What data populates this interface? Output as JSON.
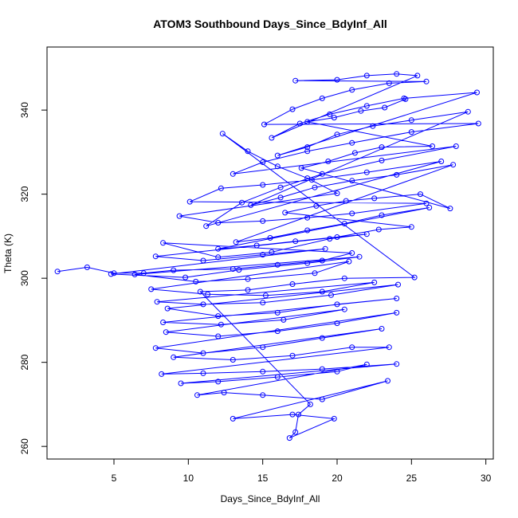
{
  "chart_data": {
    "type": "line",
    "title": "ATOM3 Southbound Days_Since_BdyInf_All",
    "xlabel": "Days_Since_BdyInf_All",
    "ylabel": "Theta (K)",
    "xlim": [
      0.5,
      30.5
    ],
    "ylim": [
      257,
      355
    ],
    "xticks": [
      5,
      10,
      15,
      20,
      25,
      30
    ],
    "yticks": [
      260,
      280,
      300,
      320,
      340
    ],
    "grid": false,
    "legend": "none",
    "colors": {
      "series": "#0000ff",
      "axis": "#000000"
    },
    "markers": "open-circle",
    "series": [
      {
        "values_note": "",
        "points": [
          [
            1.2,
            301.6
          ],
          [
            3.2,
            302.6
          ],
          [
            5.0,
            301.2
          ],
          [
            7.0,
            301.2
          ],
          [
            9.0,
            301.9
          ],
          [
            13.0,
            302.2
          ],
          [
            16.0,
            303.2
          ],
          [
            19.0,
            304.2
          ],
          [
            21.0,
            306.0
          ],
          [
            8.3,
            308.4
          ],
          [
            12.0,
            305.0
          ],
          [
            15.6,
            306.2
          ],
          [
            19.5,
            309.4
          ],
          [
            22.0,
            310.5
          ],
          [
            7.8,
            305.2
          ],
          [
            11.0,
            304.2
          ],
          [
            15.0,
            305.6
          ],
          [
            19.2,
            307.0
          ],
          [
            4.8,
            301.0
          ],
          [
            9.8,
            300.2
          ],
          [
            13.4,
            302.0
          ],
          [
            18.0,
            303.6
          ],
          [
            21.5,
            305.1
          ],
          [
            6.4,
            300.9
          ],
          [
            10.5,
            299.2
          ],
          [
            14.0,
            299.8
          ],
          [
            18.5,
            301.2
          ],
          [
            20.8,
            304.0
          ],
          [
            7.5,
            297.4
          ],
          [
            11.3,
            296.2
          ],
          [
            15.2,
            295.9
          ],
          [
            19.0,
            296.8
          ],
          [
            22.5,
            299.0
          ],
          [
            7.9,
            294.4
          ],
          [
            11.0,
            293.8
          ],
          [
            15.0,
            294.2
          ],
          [
            19.6,
            296.0
          ],
          [
            24.1,
            298.5
          ],
          [
            8.6,
            292.8
          ],
          [
            12.0,
            291.0
          ],
          [
            16.0,
            291.8
          ],
          [
            20.0,
            293.8
          ],
          [
            24.0,
            295.2
          ],
          [
            8.3,
            289.5
          ],
          [
            12.2,
            289.0
          ],
          [
            16.4,
            290.1
          ],
          [
            20.5,
            292.6
          ],
          [
            8.5,
            287.2
          ],
          [
            12.0,
            286.2
          ],
          [
            16.0,
            287.4
          ],
          [
            20.0,
            289.3
          ],
          [
            24.0,
            291.8
          ],
          [
            7.8,
            283.4
          ],
          [
            11.0,
            282.2
          ],
          [
            15.0,
            283.6
          ],
          [
            19.0,
            285.8
          ],
          [
            23.0,
            288.0
          ],
          [
            9.0,
            281.2
          ],
          [
            13.0,
            280.6
          ],
          [
            17.0,
            281.6
          ],
          [
            21.0,
            283.6
          ],
          [
            23.5,
            283.6
          ],
          [
            8.2,
            277.2
          ],
          [
            11.0,
            277.4
          ],
          [
            15.0,
            277.8
          ],
          [
            19.0,
            278.4
          ],
          [
            24.0,
            279.6
          ],
          [
            9.5,
            275.0
          ],
          [
            12.0,
            275.4
          ],
          [
            16.0,
            276.5
          ],
          [
            20.0,
            277.8
          ],
          [
            22.0,
            279.5
          ],
          [
            10.6,
            272.2
          ],
          [
            12.4,
            272.8
          ],
          [
            15.0,
            272.2
          ],
          [
            19.0,
            271.2
          ],
          [
            23.4,
            275.6
          ],
          [
            13.0,
            266.6
          ],
          [
            17.0,
            267.6
          ],
          [
            19.8,
            266.6
          ],
          [
            16.8,
            262.0
          ],
          [
            17.2,
            263.4
          ],
          [
            17.4,
            267.6
          ],
          [
            18.2,
            270.0
          ],
          [
            10.8,
            296.8
          ],
          [
            14.0,
            297.2
          ],
          [
            17.0,
            298.6
          ],
          [
            20.5,
            300.0
          ],
          [
            25.2,
            300.2
          ],
          [
            12.3,
            334.4
          ],
          [
            14.0,
            330.2
          ],
          [
            16.0,
            326.6
          ],
          [
            18.0,
            323.8
          ],
          [
            20.0,
            320.2
          ],
          [
            9.4,
            314.8
          ],
          [
            12.0,
            313.2
          ],
          [
            15.0,
            313.6
          ],
          [
            18.0,
            314.4
          ],
          [
            21.0,
            315.4
          ],
          [
            26.0,
            317.8
          ],
          [
            10.1,
            318.2
          ],
          [
            12.2,
            321.4
          ],
          [
            15.0,
            322.2
          ],
          [
            18.3,
            323.4
          ],
          [
            22.0,
            325.2
          ],
          [
            27.0,
            327.8
          ],
          [
            11.2,
            312.4
          ],
          [
            13.6,
            318.0
          ],
          [
            16.2,
            321.6
          ],
          [
            19.0,
            324.8
          ],
          [
            23.0,
            328.0
          ],
          [
            28.0,
            331.4
          ],
          [
            13.0,
            324.8
          ],
          [
            15.0,
            327.6
          ],
          [
            18.0,
            330.2
          ],
          [
            21.0,
            332.2
          ],
          [
            25.0,
            334.8
          ],
          [
            29.5,
            336.8
          ],
          [
            15.1,
            336.6
          ],
          [
            17.0,
            340.2
          ],
          [
            19.0,
            342.8
          ],
          [
            21.0,
            344.8
          ],
          [
            23.5,
            346.4
          ],
          [
            26.0,
            346.8
          ],
          [
            17.2,
            347.0
          ],
          [
            20.0,
            347.2
          ],
          [
            22.0,
            348.2
          ],
          [
            24.0,
            348.6
          ],
          [
            25.4,
            348.2
          ],
          [
            15.6,
            333.4
          ],
          [
            17.5,
            336.8
          ],
          [
            19.5,
            339.0
          ],
          [
            22.0,
            341.0
          ],
          [
            24.5,
            342.8
          ],
          [
            29.4,
            344.2
          ],
          [
            16.0,
            329.2
          ],
          [
            18.0,
            331.2
          ],
          [
            20.0,
            334.2
          ],
          [
            22.4,
            336.2
          ],
          [
            25.0,
            337.6
          ],
          [
            28.8,
            339.6
          ],
          [
            14.2,
            317.4
          ],
          [
            16.2,
            319.2
          ],
          [
            18.5,
            321.6
          ],
          [
            21.0,
            323.2
          ],
          [
            24.0,
            324.6
          ],
          [
            27.8,
            327.0
          ],
          [
            13.2,
            308.6
          ],
          [
            15.5,
            309.6
          ],
          [
            18.0,
            311.4
          ],
          [
            20.5,
            313.0
          ],
          [
            23.0,
            315.0
          ],
          [
            26.2,
            316.8
          ],
          [
            12.0,
            307.0
          ],
          [
            14.6,
            307.8
          ],
          [
            17.2,
            308.8
          ],
          [
            20.0,
            309.8
          ],
          [
            22.8,
            311.6
          ],
          [
            25.0,
            312.2
          ],
          [
            16.5,
            315.6
          ],
          [
            18.6,
            317.2
          ],
          [
            20.6,
            318.4
          ],
          [
            22.5,
            319.0
          ],
          [
            25.6,
            320.0
          ],
          [
            27.6,
            316.6
          ],
          [
            17.6,
            326.2
          ],
          [
            19.4,
            327.8
          ],
          [
            21.2,
            329.8
          ],
          [
            23.0,
            331.2
          ],
          [
            26.4,
            331.4
          ],
          [
            18.0,
            337.2
          ],
          [
            19.8,
            338.2
          ],
          [
            21.6,
            339.8
          ],
          [
            23.2,
            340.6
          ],
          [
            24.6,
            342.6
          ]
        ]
      }
    ]
  }
}
